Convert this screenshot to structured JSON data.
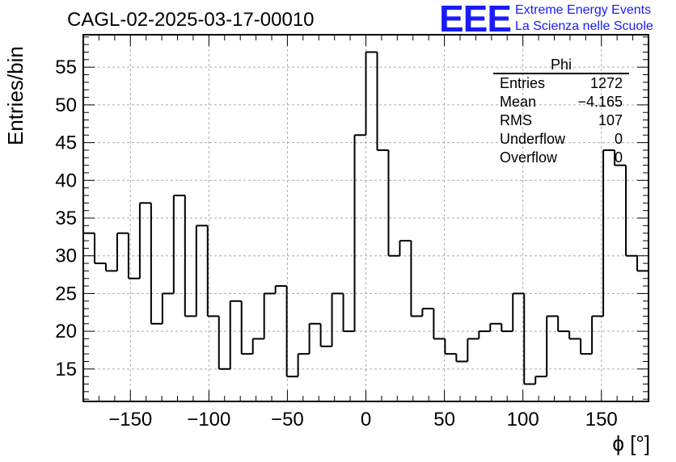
{
  "header": {
    "title": "CAGL-02-2025-03-17-00010",
    "logo_text": "EEE",
    "org_line1": "Extreme Energy Events",
    "org_line2": "La Scienza nelle Scuole",
    "brand_color": "#1a1aff"
  },
  "stats": {
    "title": "Phi",
    "rows": [
      {
        "label": "Entries",
        "value": "1272"
      },
      {
        "label": "Mean",
        "value": "−4.165"
      },
      {
        "label": "RMS",
        "value": "107"
      },
      {
        "label": "Underflow",
        "value": "0"
      },
      {
        "label": "Overflow",
        "value": "0"
      }
    ]
  },
  "chart_data": {
    "type": "histogram",
    "title": "CAGL-02-2025-03-17-00010",
    "xlabel": "ϕ [°]",
    "ylabel": "Entries/bin",
    "xlim": [
      -180,
      180
    ],
    "ylim": [
      10.7,
      59.3
    ],
    "grid": true,
    "bin_width": 7.2,
    "xticks": [
      -150,
      -100,
      -50,
      0,
      50,
      100,
      150
    ],
    "xtick_labels": [
      "−150",
      "−100",
      "−50",
      "0",
      "50",
      "100",
      "150"
    ],
    "yticks": [
      15,
      20,
      25,
      30,
      35,
      40,
      45,
      50,
      55
    ],
    "ytick_labels": [
      "15",
      "20",
      "25",
      "30",
      "35",
      "40",
      "45",
      "50",
      "55"
    ],
    "values": [
      33,
      29,
      28,
      33,
      27,
      37,
      21,
      25,
      38,
      22,
      34,
      22,
      15,
      24,
      17,
      19,
      25,
      26,
      14,
      17,
      21,
      18,
      25,
      20,
      46,
      57,
      44,
      30,
      32,
      22,
      23,
      19,
      17,
      16,
      19,
      20,
      21,
      20,
      25,
      13,
      14,
      22,
      20,
      19,
      17,
      22,
      44,
      42,
      30,
      28
    ]
  }
}
